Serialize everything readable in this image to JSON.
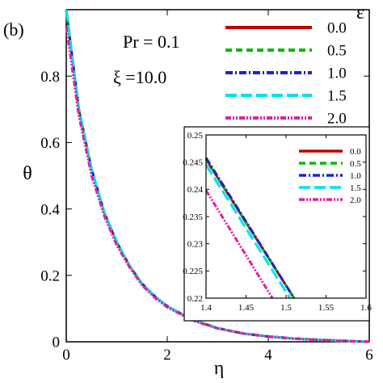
{
  "panel_label": "(b)",
  "annotations": {
    "pr": "Pr = 0.1",
    "xi": "ξ =10.0"
  },
  "legend_title": "ε",
  "chart_data": [
    {
      "type": "line",
      "role": "main",
      "xlabel": "η",
      "ylabel": "θ",
      "xlim": [
        0,
        6
      ],
      "ylim": [
        0,
        1
      ],
      "x_ticks": [
        0,
        2,
        4,
        6
      ],
      "y_ticks": [
        0,
        0.2,
        0.4,
        0.6,
        0.8
      ],
      "x_tick_labels": [
        "0",
        "2",
        "4",
        "6"
      ],
      "y_tick_labels": [
        "0",
        "0.2",
        "0.4",
        "0.6",
        "0.8"
      ],
      "legend_position": "top-right",
      "grid": false,
      "x": [
        0,
        0.25,
        0.5,
        0.75,
        1,
        1.25,
        1.5,
        1.75,
        2,
        2.5,
        3,
        3.5,
        4,
        4.5,
        5,
        5.5,
        6
      ],
      "series": [
        {
          "name": "0.0",
          "color": "#c00000",
          "dash": "solid",
          "values": [
            1.0,
            0.7,
            0.52,
            0.39,
            0.3,
            0.23,
            0.175,
            0.137,
            0.107,
            0.066,
            0.041,
            0.025,
            0.016,
            0.01,
            0.006,
            0.003,
            0.0
          ]
        },
        {
          "name": "0.5",
          "color": "#00bb00",
          "dash": "dash",
          "values": [
            1.0,
            0.7,
            0.52,
            0.39,
            0.3,
            0.23,
            0.175,
            0.137,
            0.107,
            0.066,
            0.041,
            0.025,
            0.016,
            0.01,
            0.006,
            0.003,
            0.0
          ]
        },
        {
          "name": "1.0",
          "color": "#2020cc",
          "dash": "dashdot",
          "values": [
            1.0,
            0.7,
            0.52,
            0.39,
            0.3,
            0.23,
            0.175,
            0.137,
            0.107,
            0.066,
            0.041,
            0.025,
            0.016,
            0.01,
            0.006,
            0.003,
            0.0
          ]
        },
        {
          "name": "1.5",
          "color": "#00e0f0",
          "dash": "longdash",
          "values": [
            1.0,
            0.7,
            0.52,
            0.39,
            0.3,
            0.23,
            0.175,
            0.137,
            0.107,
            0.066,
            0.041,
            0.025,
            0.016,
            0.01,
            0.006,
            0.003,
            0.0
          ]
        },
        {
          "name": "2.0",
          "color": "#e020a0",
          "dash": "dashdotdot",
          "values": [
            0.95,
            0.68,
            0.5,
            0.38,
            0.29,
            0.225,
            0.17,
            0.133,
            0.104,
            0.064,
            0.04,
            0.025,
            0.015,
            0.009,
            0.005,
            0.002,
            0.0
          ]
        }
      ]
    },
    {
      "type": "line",
      "role": "inset",
      "xlim": [
        1.4,
        1.6
      ],
      "ylim": [
        0.22,
        0.25
      ],
      "x_ticks": [
        1.4,
        1.45,
        1.5,
        1.55,
        1.6
      ],
      "y_ticks": [
        0.22,
        0.225,
        0.23,
        0.235,
        0.24,
        0.245,
        0.25
      ],
      "x_tick_labels": [
        "1.4",
        "1.45",
        "1.5",
        "1.55",
        "1.6"
      ],
      "y_tick_labels": [
        "0.22",
        "0.225",
        "0.23",
        "0.235",
        "0.24",
        "0.245",
        "0.25"
      ],
      "legend_position": "top-right",
      "series": [
        {
          "name": "0.0",
          "color": "#c00000",
          "dash": "solid",
          "x": [
            1.4,
            1.51
          ],
          "values": [
            0.2455,
            0.22
          ]
        },
        {
          "name": "0.5",
          "color": "#00bb00",
          "dash": "dash",
          "x": [
            1.4,
            1.51
          ],
          "values": [
            0.2455,
            0.22
          ]
        },
        {
          "name": "1.0",
          "color": "#2020cc",
          "dash": "dashdot",
          "x": [
            1.4,
            1.51
          ],
          "values": [
            0.2458,
            0.22
          ]
        },
        {
          "name": "1.5",
          "color": "#00e0f0",
          "dash": "longdash",
          "x": [
            1.4,
            1.505
          ],
          "values": [
            0.2445,
            0.22
          ]
        },
        {
          "name": "2.0",
          "color": "#e020a0",
          "dash": "dashdotdot",
          "x": [
            1.4,
            1.483
          ],
          "values": [
            0.2398,
            0.22
          ]
        }
      ]
    }
  ]
}
